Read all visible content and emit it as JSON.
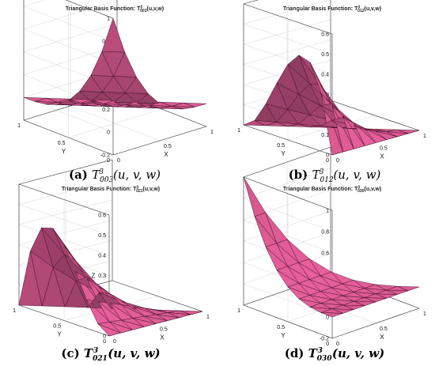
{
  "figure": {
    "panels": [
      {
        "id": "a",
        "title_prefix": "Triangular Basis Function: T",
        "title_sup": "3",
        "title_sub": "003",
        "title_suffix": "(u,v,w)",
        "caption_label": "(a) ",
        "caption_sub": "003",
        "caption_args": "(u, v, w)",
        "caption_style": "italic"
      },
      {
        "id": "b",
        "title_prefix": "Triangular Basis Function: T",
        "title_sup": "3",
        "title_sub": "012",
        "title_suffix": "(u,v,w)",
        "caption_label": "(b) ",
        "caption_sub": "012",
        "caption_args": "(u, v, w)",
        "caption_style": "italic"
      },
      {
        "id": "c",
        "title_prefix": "Triangular Basis Function: T",
        "title_sup": "3",
        "title_sub": "021",
        "title_suffix": "(u,v,w)",
        "caption_label": "(c) ",
        "caption_sub": "021",
        "caption_args": "(u, v, w)",
        "caption_style": "bold-italic"
      },
      {
        "id": "d",
        "title_prefix": "Triangular Basis Function: T",
        "title_sup": "3",
        "title_sub": "030",
        "title_suffix": "(u,v,w)",
        "caption_label": "(d) ",
        "caption_sub": "030",
        "caption_args": "(u, v, w)",
        "caption_style": "bold-italic"
      }
    ]
  },
  "chart_data": [
    {
      "type": "surface3d",
      "basis": "T3_003",
      "degree": 3,
      "indices": [
        0,
        0,
        3
      ],
      "xlabel": "X",
      "ylabel": "Y",
      "zlabel": "Z",
      "xlim": [
        0,
        1
      ],
      "ylim": [
        0,
        1
      ],
      "zlim": [
        -0.2,
        1
      ],
      "xticks": [
        "0",
        "0.5",
        "1"
      ],
      "yticks": [
        "0",
        "0.5",
        "1"
      ],
      "zticks": [
        "-0.2",
        "0",
        "0.2",
        "0.4",
        "0.6",
        "0.8",
        "1"
      ],
      "surface_color": "#e8609b",
      "grid": true
    },
    {
      "type": "surface3d",
      "basis": "T3_012",
      "degree": 3,
      "indices": [
        0,
        1,
        2
      ],
      "xlabel": "X",
      "ylabel": "Y",
      "zlabel": "Z",
      "xlim": [
        0,
        1
      ],
      "ylim": [
        0,
        1
      ],
      "zlim": [
        0,
        0.6
      ],
      "xticks": [
        "0",
        "0.5",
        "1"
      ],
      "yticks": [
        "0",
        "0.5",
        "1"
      ],
      "zticks": [
        "0",
        "0.1",
        "0.2",
        "0.3",
        "0.4",
        "0.5",
        "0.6"
      ],
      "surface_color": "#e8609b",
      "grid": true
    },
    {
      "type": "surface3d",
      "basis": "T3_021",
      "degree": 3,
      "indices": [
        0,
        2,
        1
      ],
      "xlabel": "X",
      "ylabel": "Y",
      "zlabel": "Z",
      "xlim": [
        0,
        1
      ],
      "ylim": [
        0,
        1
      ],
      "zlim": [
        0,
        0.6
      ],
      "xticks": [
        "0",
        "0.5",
        "1"
      ],
      "yticks": [
        "0",
        "0.5",
        "1"
      ],
      "zticks": [
        "0",
        "0.1",
        "0.2",
        "0.3",
        "0.4",
        "0.5",
        "0.6"
      ],
      "surface_color": "#e8609b",
      "grid": true
    },
    {
      "type": "surface3d",
      "basis": "T3_030",
      "degree": 3,
      "indices": [
        0,
        3,
        0
      ],
      "xlabel": "X",
      "ylabel": "Y",
      "zlabel": "Z",
      "xlim": [
        0,
        1
      ],
      "ylim": [
        0,
        1
      ],
      "zlim": [
        -0.2,
        1
      ],
      "xticks": [
        "0",
        "0.5",
        "1"
      ],
      "yticks": [
        "0",
        "0.5",
        "1"
      ],
      "zticks": [
        "-0.2",
        "0",
        "0.2",
        "0.4",
        "0.6",
        "0.8",
        "1"
      ],
      "surface_color": "#e8609b",
      "grid": true
    }
  ]
}
